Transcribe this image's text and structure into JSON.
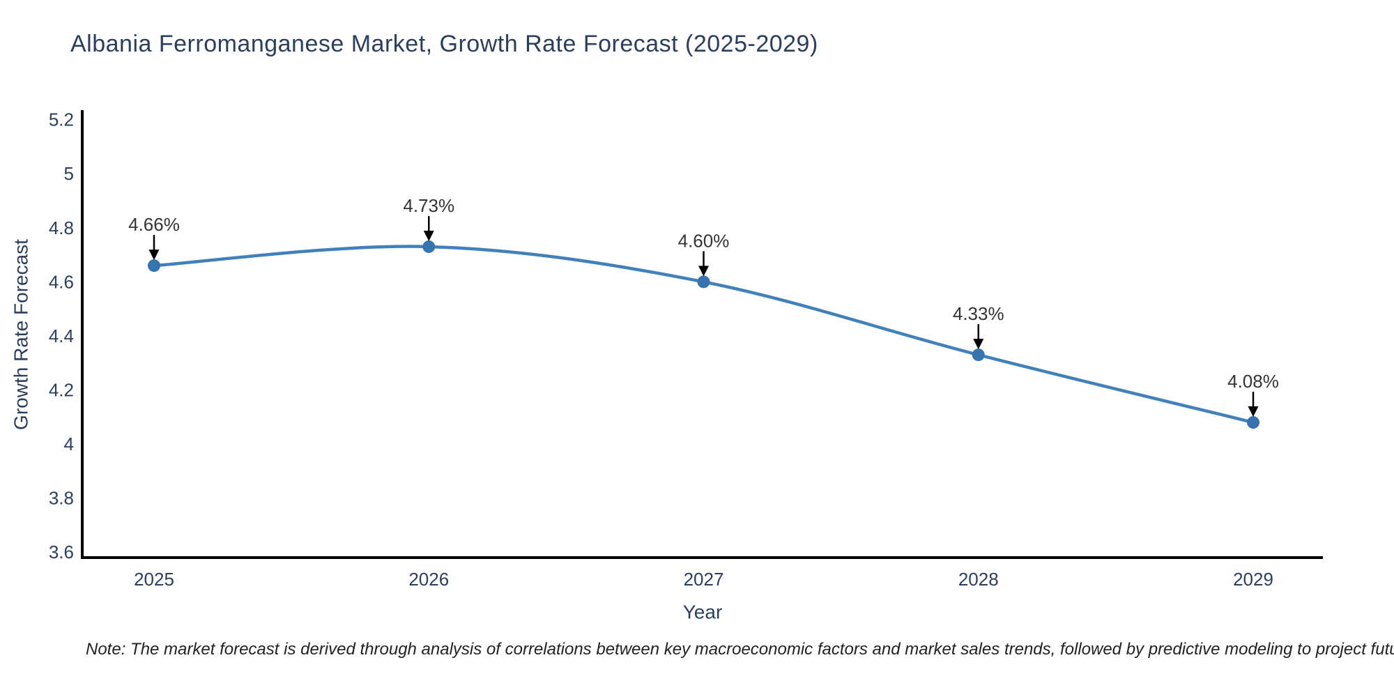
{
  "chart_data": {
    "type": "line",
    "title": "Albania Ferromanganese Market, Growth Rate Forecast (2025-2029)",
    "xlabel": "Year",
    "ylabel": "Growth Rate Forecast",
    "x": [
      2025,
      2026,
      2027,
      2028,
      2029
    ],
    "series": [
      {
        "name": "Growth Rate Forecast",
        "values": [
          4.66,
          4.73,
          4.6,
          4.33,
          4.08
        ]
      }
    ],
    "point_labels": [
      "4.66%",
      "4.73%",
      "4.60%",
      "4.33%",
      "4.08%"
    ],
    "yticks": [
      3.6,
      3.8,
      4,
      4.2,
      4.4,
      4.6,
      4.8,
      5,
      5.2
    ],
    "ylim": [
      3.58,
      5.23
    ],
    "grid": false,
    "legend": "none",
    "line_shape": "spline",
    "marker_style": "circle-with-down-arrow-annotation"
  },
  "note": "Note: The market forecast is derived through analysis of correlations between key macroeconomic factors and market sales trends, followed by predictive modeling to project future sales",
  "colors": {
    "background": "#ffffff",
    "line": "#4181bb",
    "marker": "#3573b1",
    "axis": "#000000",
    "title_text": "#2a3f5f",
    "tick_text": "#2a3f5f",
    "axis_title_text": "#2a3f5f",
    "annotation_text": "#333333",
    "annotation_arrow": "#000000",
    "note_text": "#222222"
  }
}
